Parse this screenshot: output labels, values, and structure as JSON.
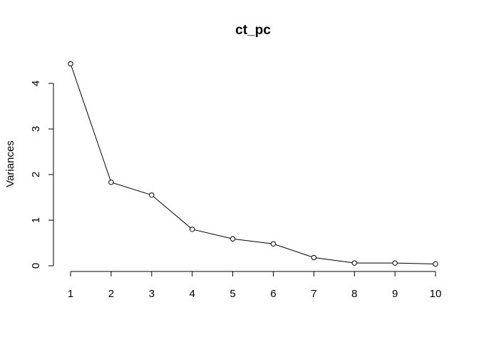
{
  "chart_data": {
    "type": "line",
    "title": "ct_pc",
    "xlabel": "",
    "ylabel": "Variances",
    "x": [
      1,
      2,
      3,
      4,
      5,
      6,
      7,
      8,
      9,
      10
    ],
    "series": [
      {
        "values": [
          4.43,
          1.83,
          1.55,
          0.8,
          0.59,
          0.48,
          0.18,
          0.06,
          0.06,
          0.04
        ]
      }
    ],
    "xticks": [
      "1",
      "2",
      "3",
      "4",
      "5",
      "6",
      "7",
      "8",
      "9",
      "10"
    ],
    "yticks": [
      "0",
      "1",
      "2",
      "3",
      "4"
    ],
    "xlim": [
      1,
      10
    ],
    "ylim": [
      0,
      4
    ],
    "grid": false,
    "markers": "open-circle",
    "colors": {
      "line": "#000000",
      "marker_fill": "#ffffff",
      "axis": "#000000"
    }
  }
}
